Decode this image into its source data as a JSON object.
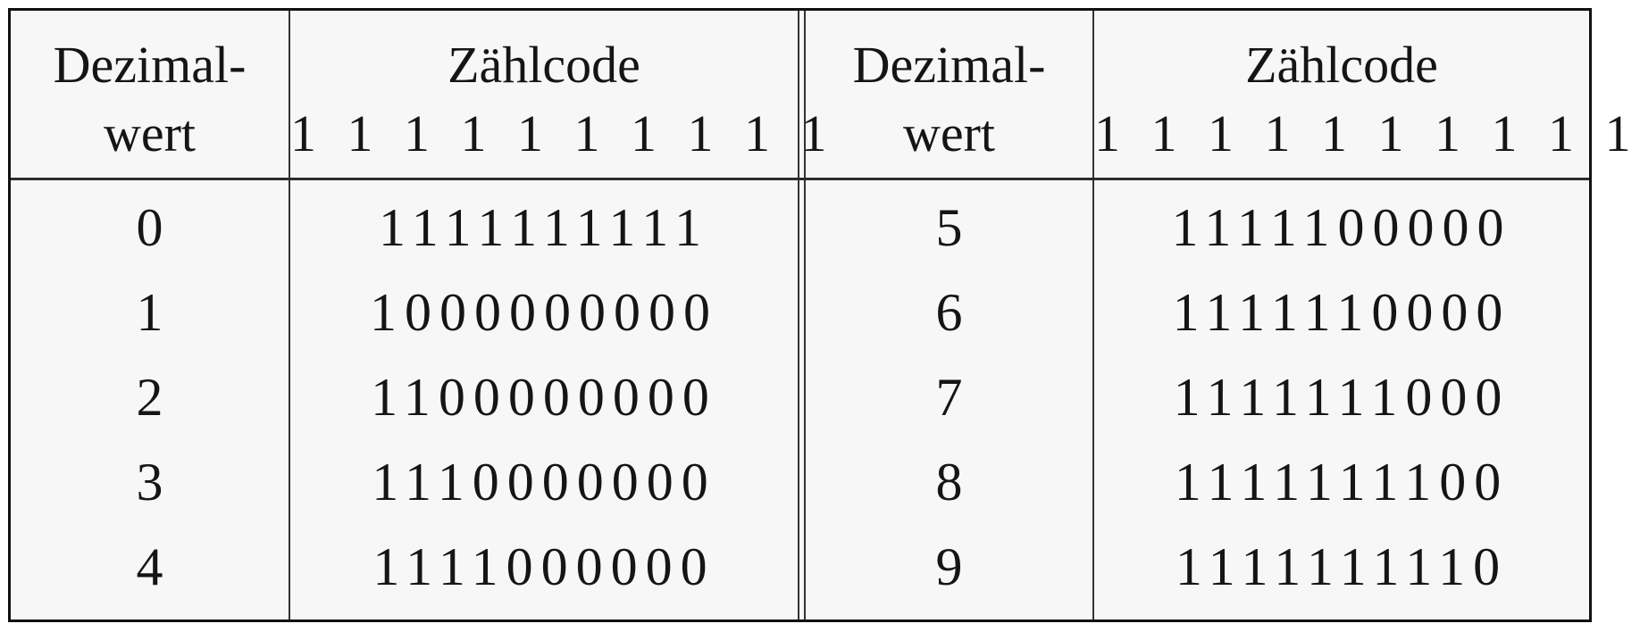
{
  "left": {
    "header": {
      "decimal_line1": "Dezimal-",
      "decimal_line2": "wert",
      "code_title": "Zählcode",
      "code_weights": "1 1 1 1 1 1 1 1 1 1"
    },
    "rows": [
      {
        "decimal": "0",
        "code": "1111111111"
      },
      {
        "decimal": "1",
        "code": "1000000000"
      },
      {
        "decimal": "2",
        "code": "1100000000"
      },
      {
        "decimal": "3",
        "code": "1110000000"
      },
      {
        "decimal": "4",
        "code": "1111000000"
      }
    ]
  },
  "right": {
    "header": {
      "decimal_line1": "Dezimal-",
      "decimal_line2": "wert",
      "code_title": "Zählcode",
      "code_weights": "1 1 1 1 1 1 1 1 1 1"
    },
    "rows": [
      {
        "decimal": "5",
        "code": "1111100000"
      },
      {
        "decimal": "6",
        "code": "1111110000"
      },
      {
        "decimal": "7",
        "code": "1111111000"
      },
      {
        "decimal": "8",
        "code": "1111111100"
      },
      {
        "decimal": "9",
        "code": "1111111110"
      }
    ]
  }
}
